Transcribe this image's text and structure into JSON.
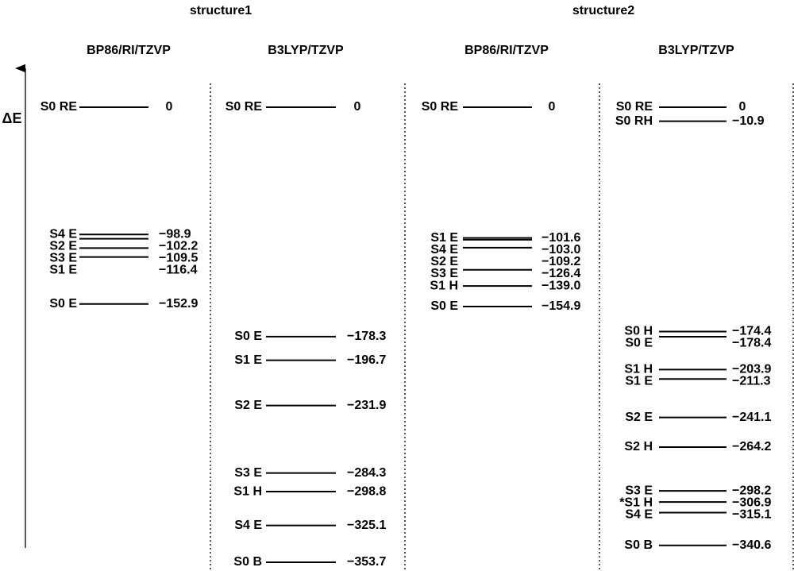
{
  "axis_label": "ΔE",
  "structures": [
    {
      "title": "structure1",
      "methods": [
        {
          "title": "BP86/RI/TZVP",
          "levels": [
            {
              "label": "S0 RE",
              "value": 0,
              "value_label": "0"
            },
            {
              "label": "S4 E",
              "value": -98.9,
              "value_label": "−98.9"
            },
            {
              "label": "S2 E",
              "value": -102.2,
              "value_label": "−102.2"
            },
            {
              "label": "S3 E",
              "value": -109.5,
              "value_label": "−109.5"
            },
            {
              "label": "S1 E",
              "value": -116.4,
              "value_label": "−116.4"
            },
            {
              "label": "S0 E",
              "value": -152.9,
              "value_label": "−152.9"
            }
          ]
        },
        {
          "title": "B3LYP/TZVP",
          "levels": [
            {
              "label": "S0 RE",
              "value": 0,
              "value_label": "0"
            },
            {
              "label": "S0 E",
              "value": -178.3,
              "value_label": "−178.3"
            },
            {
              "label": "S1 E",
              "value": -196.7,
              "value_label": "−196.7"
            },
            {
              "label": "S2 E",
              "value": -231.9,
              "value_label": "−231.9"
            },
            {
              "label": "S3 E",
              "value": -284.3,
              "value_label": "−284.3"
            },
            {
              "label": "S1 H",
              "value": -298.8,
              "value_label": "−298.8"
            },
            {
              "label": "S4 E",
              "value": -325.1,
              "value_label": "−325.1"
            },
            {
              "label": "S0 B",
              "value": -353.7,
              "value_label": "−353.7"
            }
          ]
        }
      ]
    },
    {
      "title": "structure2",
      "methods": [
        {
          "title": "BP86/RI/TZVP",
          "levels": [
            {
              "label": "S0 RE",
              "value": 0,
              "value_label": "0"
            },
            {
              "label": "S1 E",
              "value": -101.6,
              "value_label": "−101.6"
            },
            {
              "label": "S4 E",
              "value": -103.0,
              "value_label": "−103.0"
            },
            {
              "label": "S2 E",
              "value": -109.2,
              "value_label": "−109.2"
            },
            {
              "label": "S3 E",
              "value": -126.4,
              "value_label": "−126.4"
            },
            {
              "label": "S1 H",
              "value": -139.0,
              "value_label": "−139.0"
            },
            {
              "label": "S0 E",
              "value": -154.9,
              "value_label": "−154.9"
            }
          ]
        },
        {
          "title": "B3LYP/TZVP",
          "levels": [
            {
              "label": "S0 RE",
              "value": 0,
              "value_label": "0"
            },
            {
              "label": "S0 RH",
              "value": -10.9,
              "value_label": "−10.9"
            },
            {
              "label": "S0 H",
              "value": -174.4,
              "value_label": "−174.4"
            },
            {
              "label": "S0 E",
              "value": -178.4,
              "value_label": "−178.4"
            },
            {
              "label": "S1 H",
              "value": -203.9,
              "value_label": "−203.9"
            },
            {
              "label": "S1 E",
              "value": -211.3,
              "value_label": "−211.3"
            },
            {
              "label": "S2 E",
              "value": -241.1,
              "value_label": "−241.1"
            },
            {
              "label": "S2 H",
              "value": -264.2,
              "value_label": "−264.2"
            },
            {
              "label": "S3 E",
              "value": -298.2,
              "value_label": "−298.2"
            },
            {
              "label": "*S1 H",
              "value": -306.9,
              "value_label": "−306.9"
            },
            {
              "label": "S4 E",
              "value": -315.1,
              "value_label": "−315.1"
            },
            {
              "label": "S0 B",
              "value": -340.6,
              "value_label": "−340.6"
            }
          ]
        }
      ]
    }
  ]
}
